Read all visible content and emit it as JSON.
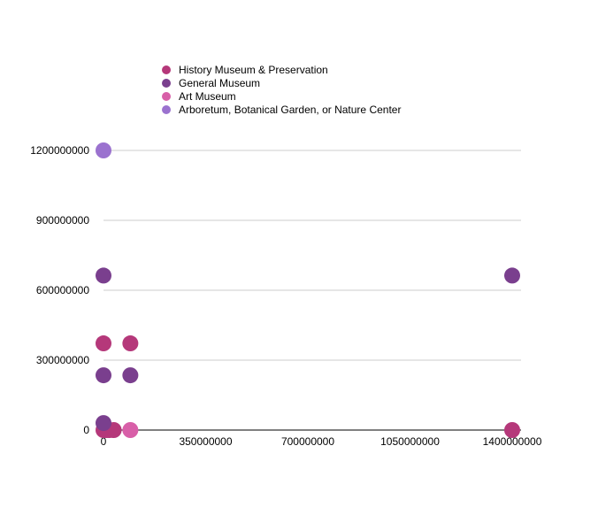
{
  "chart_data": {
    "type": "scatter",
    "title": "",
    "xlabel": "",
    "ylabel": "",
    "xlim": [
      0,
      1400000000
    ],
    "ylim": [
      0,
      1200000000
    ],
    "x_ticks": [
      0,
      350000000,
      700000000,
      1050000000,
      1400000000
    ],
    "y_ticks": [
      0,
      300000000,
      600000000,
      900000000,
      1200000000
    ],
    "x_tick_labels": [
      "0",
      "350000000",
      "700000000",
      "1050000000",
      "1400000000"
    ],
    "y_tick_labels": [
      "0",
      "300000000",
      "600000000",
      "900000000",
      "1200000000"
    ],
    "grid": "horizontal",
    "legend_position": "top-left",
    "series": [
      {
        "name": "History Museum & Preservation",
        "color": "#b5387a",
        "points": [
          [
            0,
            372000000
          ],
          [
            92000000,
            372000000
          ],
          [
            0,
            0
          ],
          [
            10000000,
            0
          ],
          [
            20000000,
            0
          ],
          [
            35000000,
            0
          ],
          [
            1400000000,
            0
          ]
        ]
      },
      {
        "name": "General Museum",
        "color": "#7a3f8e",
        "points": [
          [
            0,
            663000000
          ],
          [
            1400000000,
            663000000
          ],
          [
            0,
            235000000
          ],
          [
            92000000,
            235000000
          ],
          [
            0,
            30000000
          ]
        ]
      },
      {
        "name": "Art Museum",
        "color": "#d85fa8",
        "points": [
          [
            92000000,
            0
          ]
        ]
      },
      {
        "name": "Arboretum, Botanical Garden, or Nature Center",
        "color": "#9b72cf",
        "points": [
          [
            0,
            1200000000
          ]
        ]
      }
    ]
  }
}
